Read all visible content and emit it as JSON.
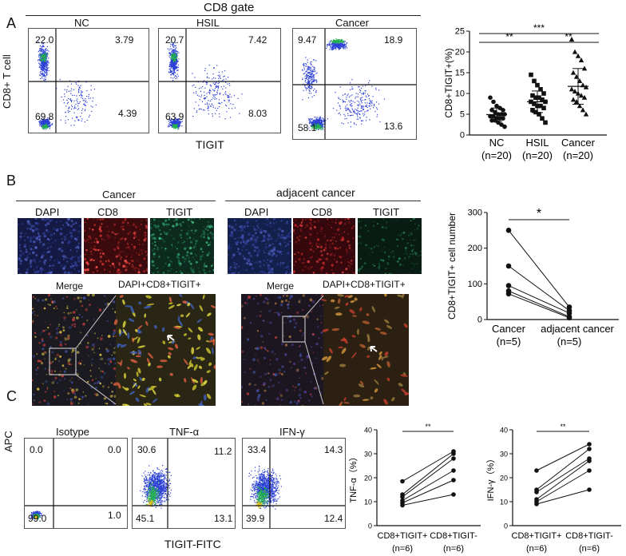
{
  "panels": {
    "a": "A",
    "b": "B",
    "c": "C"
  },
  "panelA": {
    "gate_title": "CD8 gate",
    "y_axis": "CD8+ T cell",
    "x_axis": "TIGIT",
    "plots": [
      {
        "title": "NC",
        "ul": "22.0",
        "ur": "3.79",
        "ll": "69.8",
        "lr": "4.39"
      },
      {
        "title": "HSIL",
        "ul": "20.7",
        "ur": "7.42",
        "ll": "63.9",
        "lr": "8.03"
      },
      {
        "title": "Cancer",
        "ul": "9.47",
        "ur": "18.9",
        "ll": "58.1",
        "lr": "13.6"
      }
    ],
    "sig": [
      "***",
      "**",
      "**"
    ]
  },
  "panelB": {
    "cancer_title": "Cancer",
    "adjacent_title": "adjacent cancer",
    "channels": [
      "DAPI",
      "CD8",
      "TIGIT"
    ],
    "merge": "Merge",
    "zoom": "DAPI+CD8+TIGIT+",
    "sig": "*"
  },
  "panelC": {
    "y_axis": "APC",
    "x_axis": "TIGIT-FITC",
    "plots": [
      {
        "title": "Isotype",
        "ul": "0.0",
        "ur": "0.0",
        "ll": "99.0",
        "lr": "1.0"
      },
      {
        "title": "TNF-α",
        "ul": "30.6",
        "ur": "11.2",
        "ll": "45.1",
        "lr": "13.1"
      },
      {
        "title": "IFN-γ",
        "ul": "33.4",
        "ur": "14.3",
        "ll": "39.9",
        "lr": "12.4"
      }
    ],
    "sig": [
      "**",
      "**"
    ]
  },
  "chart_data": [
    {
      "type": "scatter",
      "ylabel": "CD8+TIGIT+(%)",
      "categories": [
        "NC\n(n=20)",
        "HSIL\n(n=20)",
        "Cancer\n(n=20)"
      ],
      "cat_names": [
        "NC",
        "HSIL",
        "Cancer"
      ],
      "cat_ns": [
        "(n=20)",
        "(n=20)",
        "(n=20)"
      ],
      "ylim": [
        0,
        25
      ],
      "yticks": [
        "0",
        "5",
        "10",
        "15",
        "20",
        "25"
      ],
      "series": [
        {
          "name": "NC",
          "marker": "circle",
          "values": [
            9,
            8,
            7,
            6.5,
            6,
            6,
            5.5,
            5,
            5,
            5,
            4.5,
            4.5,
            4,
            4,
            4,
            3.5,
            3.5,
            3,
            2.5,
            2
          ],
          "mean": 4.9,
          "sd": 1.6
        },
        {
          "name": "HSIL",
          "marker": "square",
          "values": [
            14.5,
            13,
            12,
            11,
            10,
            9.5,
            9,
            9,
            8.5,
            8,
            8,
            7.5,
            7,
            7,
            6.5,
            6,
            5.5,
            5,
            4,
            3
          ],
          "mean": 8.0,
          "sd": 2.6
        },
        {
          "name": "Cancer",
          "marker": "triangle",
          "values": [
            23,
            20,
            19,
            18,
            16,
            15,
            14,
            13,
            12,
            11.5,
            11,
            10.5,
            10,
            9.5,
            9,
            8.5,
            8,
            7,
            6,
            5
          ],
          "mean": 11.7,
          "sd": 4.3
        }
      ]
    },
    {
      "type": "line",
      "ylabel": "CD8+TIGIT+ cell number",
      "cat_names": [
        "Cancer",
        "adjacent cancer"
      ],
      "cat_ns": [
        "(n=5)",
        "(n=5)"
      ],
      "ylim": [
        0,
        300
      ],
      "yticks": [
        "0",
        "100",
        "200",
        "300"
      ],
      "pairs": [
        [
          250,
          35
        ],
        [
          150,
          25
        ],
        [
          95,
          18
        ],
        [
          80,
          8
        ],
        [
          72,
          5
        ]
      ]
    },
    {
      "type": "line",
      "ylabel": "TNF-α（%）",
      "cat_names": [
        "CD8+TIGIT+",
        "CD8+TIGIT-"
      ],
      "cat_ns": [
        "(n=6)",
        "(n=6)"
      ],
      "ylim": [
        0,
        40
      ],
      "yticks": [
        "0",
        "10",
        "20",
        "30",
        "40"
      ],
      "pairs": [
        [
          18.5,
          31
        ],
        [
          13,
          30
        ],
        [
          12,
          28
        ],
        [
          10.5,
          23
        ],
        [
          9.5,
          19
        ],
        [
          8.5,
          13
        ]
      ]
    },
    {
      "type": "line",
      "ylabel": "IFN-γ（%）",
      "cat_names": [
        "CD8+TIGIT+",
        "CD8+TIGIT-"
      ],
      "cat_ns": [
        "(n=6)",
        "(n=6)"
      ],
      "ylim": [
        0,
        40
      ],
      "yticks": [
        "0",
        "10",
        "20",
        "30",
        "40"
      ],
      "pairs": [
        [
          23,
          34
        ],
        [
          15,
          32
        ],
        [
          14,
          28
        ],
        [
          11,
          27
        ],
        [
          10,
          23
        ],
        [
          9,
          15
        ]
      ]
    }
  ]
}
